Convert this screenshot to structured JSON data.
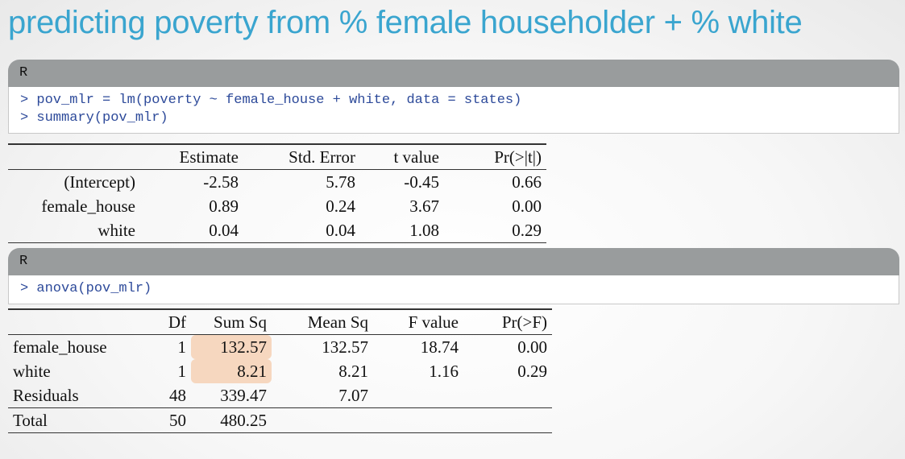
{
  "title": "predicting poverty from % female householder + % white",
  "code_block_1": {
    "header": "R",
    "lines": [
      "> pov_mlr = lm(poverty ~ female_house + white, data = states)",
      "> summary(pov_mlr)"
    ]
  },
  "coef_table": {
    "columns": [
      "Estimate",
      "Std. Error",
      "t value",
      "Pr(>|t|)"
    ],
    "rows": [
      {
        "label": "(Intercept)",
        "values": [
          "-2.58",
          "5.78",
          "-0.45",
          "0.66"
        ]
      },
      {
        "label": "female_house",
        "values": [
          "0.89",
          "0.24",
          "3.67",
          "0.00"
        ]
      },
      {
        "label": "white",
        "values": [
          "0.04",
          "0.04",
          "1.08",
          "0.29"
        ]
      }
    ]
  },
  "code_block_2": {
    "header": "R",
    "lines": [
      "> anova(pov_mlr)"
    ]
  },
  "anova_table": {
    "columns": [
      "Df",
      "Sum Sq",
      "Mean Sq",
      "F value",
      "Pr(>F)"
    ],
    "rows": [
      {
        "label": "female_house",
        "values": [
          "1",
          "132.57",
          "132.57",
          "18.74",
          "0.00"
        ]
      },
      {
        "label": "white",
        "values": [
          "1",
          "8.21",
          "8.21",
          "1.16",
          "0.29"
        ]
      },
      {
        "label": "Residuals",
        "values": [
          "48",
          "339.47",
          "7.07",
          "",
          ""
        ]
      },
      {
        "label": "Total",
        "values": [
          "50",
          "480.25",
          "",
          "",
          ""
        ]
      }
    ],
    "highlight_color": "#f6d7bf"
  },
  "colors": {
    "title": "#3aa5cf",
    "code_text": "#2d4a9a",
    "code_header": "#999c9d"
  }
}
